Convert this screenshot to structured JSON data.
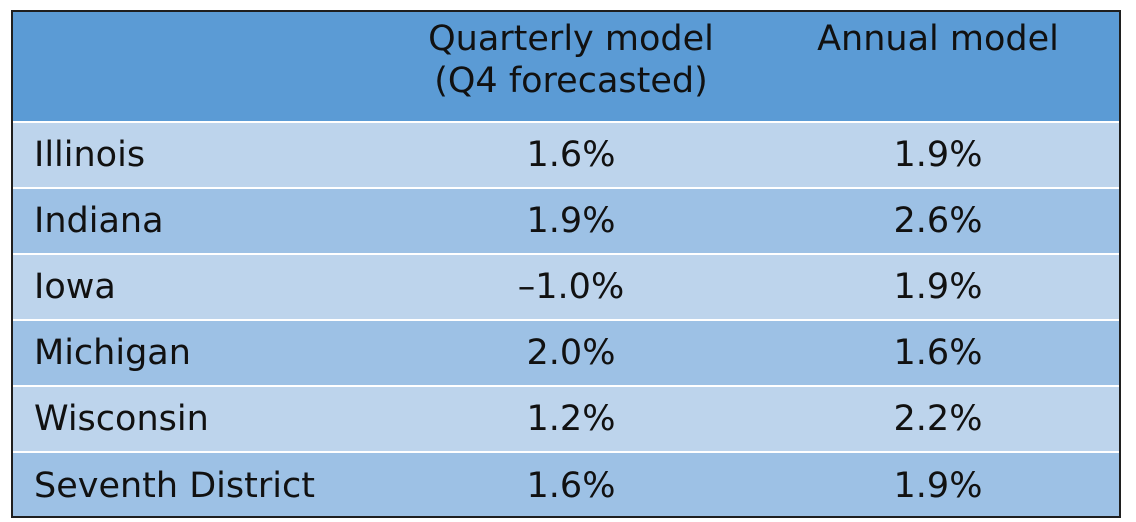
{
  "colors": {
    "header_bg": "#5b9bd5",
    "row_light": "#bdd4ec",
    "row_dark": "#9dc1e5",
    "border": "#1f1f1f",
    "text": "#111111"
  },
  "chart_data": {
    "type": "table",
    "columns": [
      "",
      "Quarterly model\n(Q4 forecasted)",
      "Annual model"
    ],
    "header": {
      "col0": "",
      "col1_line1": "Quarterly model",
      "col1_line2": "(Q4 forecasted)",
      "col2": "Annual model"
    },
    "rows": [
      {
        "state": "Illinois",
        "quarterly": "1.6%",
        "annual": "1.9%"
      },
      {
        "state": "Indiana",
        "quarterly": "1.9%",
        "annual": "2.6%"
      },
      {
        "state": "Iowa",
        "quarterly": "–1.0%",
        "annual": "1.9%"
      },
      {
        "state": "Michigan",
        "quarterly": "2.0%",
        "annual": "1.6%"
      },
      {
        "state": "Wisconsin",
        "quarterly": "1.2%",
        "annual": "2.2%"
      },
      {
        "state": "Seventh District",
        "quarterly": "1.6%",
        "annual": "1.9%"
      }
    ]
  }
}
